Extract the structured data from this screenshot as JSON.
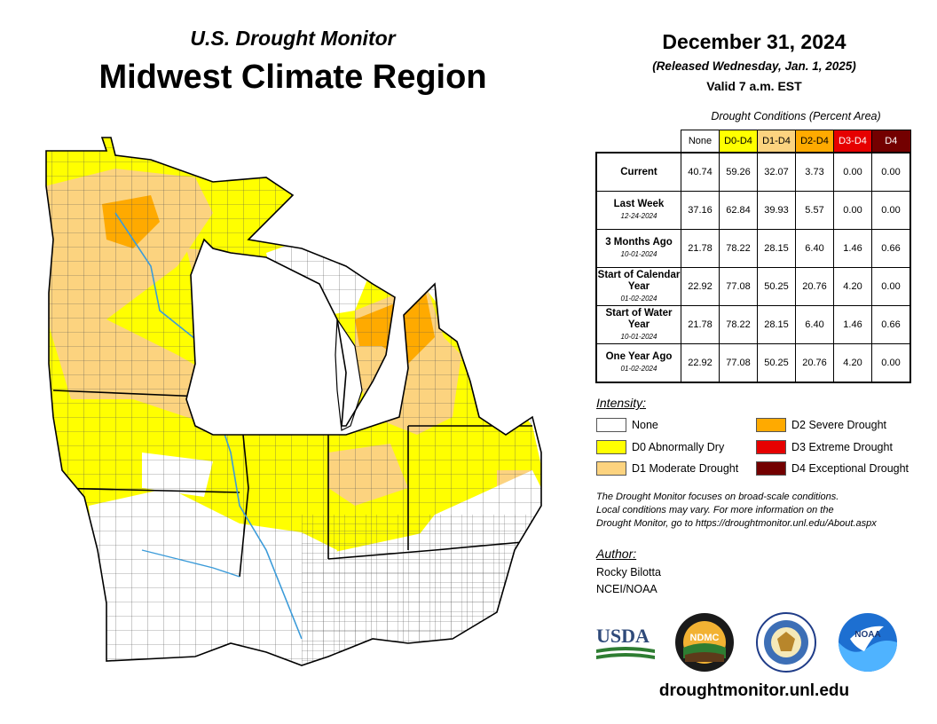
{
  "header": {
    "subtitle": "U.S. Drought Monitor",
    "title": "Midwest Climate Region",
    "date": "December 31, 2024",
    "released": "(Released Wednesday, Jan. 1, 2025)",
    "valid": "Valid 7 a.m. EST"
  },
  "table": {
    "caption": "Drought Conditions (Percent Area)",
    "columns": [
      "None",
      "D0-D4",
      "D1-D4",
      "D2-D4",
      "D3-D4",
      "D4"
    ],
    "column_colors": [
      "#ffffff",
      "#ffff00",
      "#fcd37f",
      "#ffaa00",
      "#e60000",
      "#730000"
    ],
    "rows": [
      {
        "label": "Current",
        "date": "",
        "values": [
          "40.74",
          "59.26",
          "32.07",
          "3.73",
          "0.00",
          "0.00"
        ]
      },
      {
        "label": "Last Week",
        "date": "12-24-2024",
        "values": [
          "37.16",
          "62.84",
          "39.93",
          "5.57",
          "0.00",
          "0.00"
        ]
      },
      {
        "label": "3 Months Ago",
        "date": "10-01-2024",
        "values": [
          "21.78",
          "78.22",
          "28.15",
          "6.40",
          "1.46",
          "0.66"
        ]
      },
      {
        "label": "Start of Calendar Year",
        "date": "01-02-2024",
        "values": [
          "22.92",
          "77.08",
          "50.25",
          "20.76",
          "4.20",
          "0.00"
        ]
      },
      {
        "label": "Start of Water Year",
        "date": "10-01-2024",
        "values": [
          "21.78",
          "78.22",
          "28.15",
          "6.40",
          "1.46",
          "0.66"
        ]
      },
      {
        "label": "One Year Ago",
        "date": "01-02-2024",
        "values": [
          "22.92",
          "77.08",
          "50.25",
          "20.76",
          "4.20",
          "0.00"
        ]
      }
    ]
  },
  "legend": {
    "title": "Intensity:",
    "items": [
      {
        "label": "None",
        "color": "#ffffff"
      },
      {
        "label": "D0 Abnormally Dry",
        "color": "#ffff00"
      },
      {
        "label": "D1 Moderate Drought",
        "color": "#fcd37f"
      },
      {
        "label": "D2 Severe Drought",
        "color": "#ffaa00"
      },
      {
        "label": "D3 Extreme Drought",
        "color": "#e60000"
      },
      {
        "label": "D4 Exceptional Drought",
        "color": "#730000"
      }
    ]
  },
  "note": {
    "line1": "The Drought Monitor focuses on broad-scale conditions.",
    "line2": "Local conditions may vary. For more information on the",
    "line3": "Drought Monitor, go to https://droughtmonitor.unl.edu/About.aspx"
  },
  "author": {
    "title": "Author:",
    "name": "Rocky Bilotta",
    "org": "NCEI/NOAA"
  },
  "logos": {
    "usda": "USDA",
    "ndmc": "NDMC",
    "noaa": "NOAA"
  },
  "website": "droughtmonitor.unl.edu"
}
